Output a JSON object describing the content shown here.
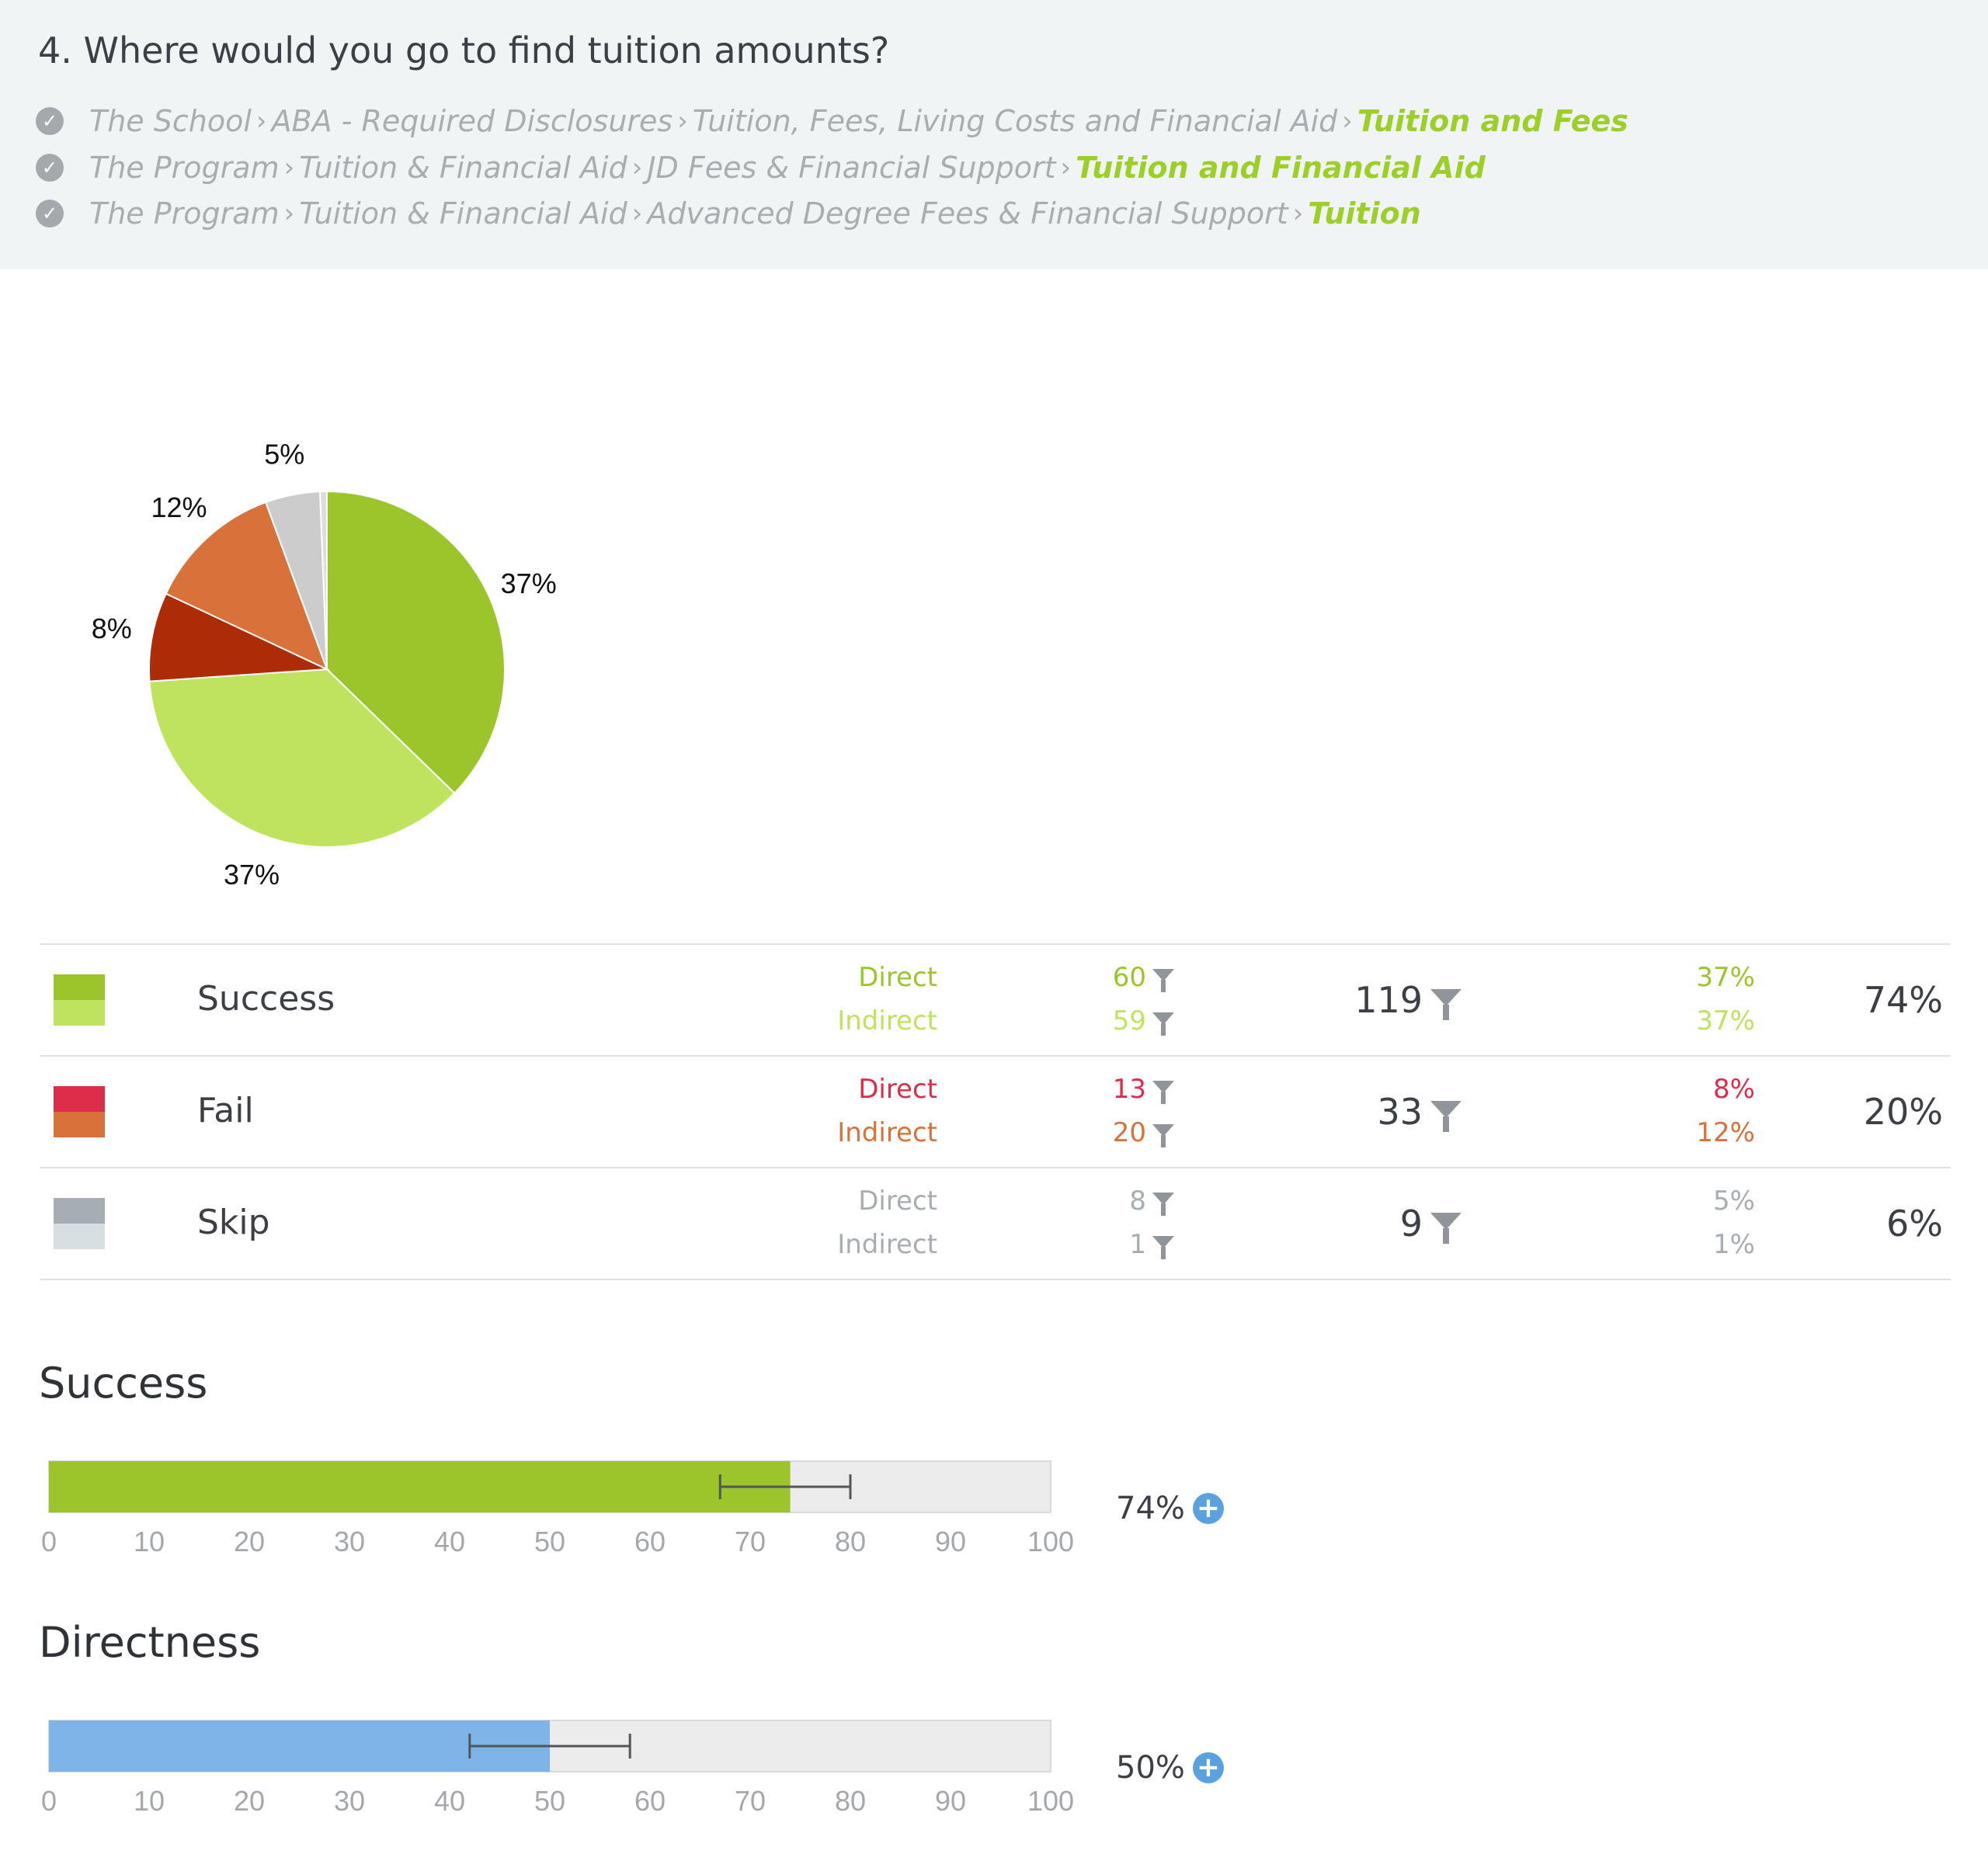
{
  "question": "4. Where would you go to find tuition amounts?",
  "paths": [
    {
      "crumbs": [
        "The School",
        "ABA - Required Disclosures",
        "Tuition, Fees, Living Costs and Financial Aid"
      ],
      "final": "Tuition and Fees"
    },
    {
      "crumbs": [
        "The Program",
        "Tuition & Financial Aid",
        "JD Fees & Financial Support"
      ],
      "final": "Tuition and Financial Aid"
    },
    {
      "crumbs": [
        "The Program",
        "Tuition & Financial Aid",
        "Advanced Degree Fees & Financial Support"
      ],
      "final": "Tuition"
    }
  ],
  "icons": {
    "check": "check-circle-icon",
    "separator": "chevron-right-icon",
    "filter": "filter-funnel-icon",
    "add": "plus-circle-icon"
  },
  "colors": {
    "success_direct": "#9bc52a",
    "success_indirect": "#bfe35e",
    "fail_direct": "#dc2e4b",
    "fail_indirect": "#d8713a",
    "skip_direct": "#a6adb3",
    "skip_indirect": "#d8dfe2",
    "pie_fail_direct": "#ab2c05",
    "pie_skip": "#cccccc",
    "directness_bar": "#7db5e8",
    "accent": "#9ccf2a"
  },
  "outcomes": [
    {
      "label": "Success",
      "direct_label": "Direct",
      "indirect_label": "Indirect",
      "direct_count": "60",
      "indirect_count": "59",
      "total": "119",
      "direct_pct": "37%",
      "indirect_pct": "37%",
      "overall_pct": "74%"
    },
    {
      "label": "Fail",
      "direct_label": "Direct",
      "indirect_label": "Indirect",
      "direct_count": "13",
      "indirect_count": "20",
      "total": "33",
      "direct_pct": "8%",
      "indirect_pct": "12%",
      "overall_pct": "20%"
    },
    {
      "label": "Skip",
      "direct_label": "Direct",
      "indirect_label": "Indirect",
      "direct_count": "8",
      "indirect_count": "1",
      "total": "9",
      "direct_pct": "5%",
      "indirect_pct": "1%",
      "overall_pct": "6%"
    }
  ],
  "metrics": [
    {
      "title": "Success",
      "value_label": "74%",
      "value": 74,
      "ci_low": 67,
      "ci_high": 80
    },
    {
      "title": "Directness",
      "value_label": "50%",
      "value": 50,
      "ci_low": 42,
      "ci_high": 58
    }
  ],
  "chart_data": [
    {
      "type": "pie",
      "slices": [
        {
          "name": "Success Direct",
          "value": 60,
          "label": "37%",
          "color": "#9bc52a"
        },
        {
          "name": "Success Indirect",
          "value": 59,
          "label": "37%",
          "color": "#bfe35e"
        },
        {
          "name": "Fail Direct",
          "value": 13,
          "label": "8%",
          "color": "#ab2c05"
        },
        {
          "name": "Fail Indirect",
          "value": 20,
          "label": "12%",
          "color": "#d8713a"
        },
        {
          "name": "Skip Direct",
          "value": 8,
          "label": "5%",
          "color": "#cccccc"
        },
        {
          "name": "Skip Indirect",
          "value": 1,
          "label": "",
          "color": "#dddddd"
        }
      ]
    },
    {
      "type": "bar",
      "title": "Success",
      "categories": [
        "Success"
      ],
      "values": [
        74
      ],
      "error_range": [
        67,
        80
      ],
      "xlim": [
        0,
        100
      ],
      "ticks": [
        0,
        10,
        20,
        30,
        40,
        50,
        60,
        70,
        80,
        90,
        100
      ]
    },
    {
      "type": "bar",
      "title": "Directness",
      "categories": [
        "Directness"
      ],
      "values": [
        50
      ],
      "error_range": [
        42,
        58
      ],
      "xlim": [
        0,
        100
      ],
      "ticks": [
        0,
        10,
        20,
        30,
        40,
        50,
        60,
        70,
        80,
        90,
        100
      ]
    }
  ]
}
